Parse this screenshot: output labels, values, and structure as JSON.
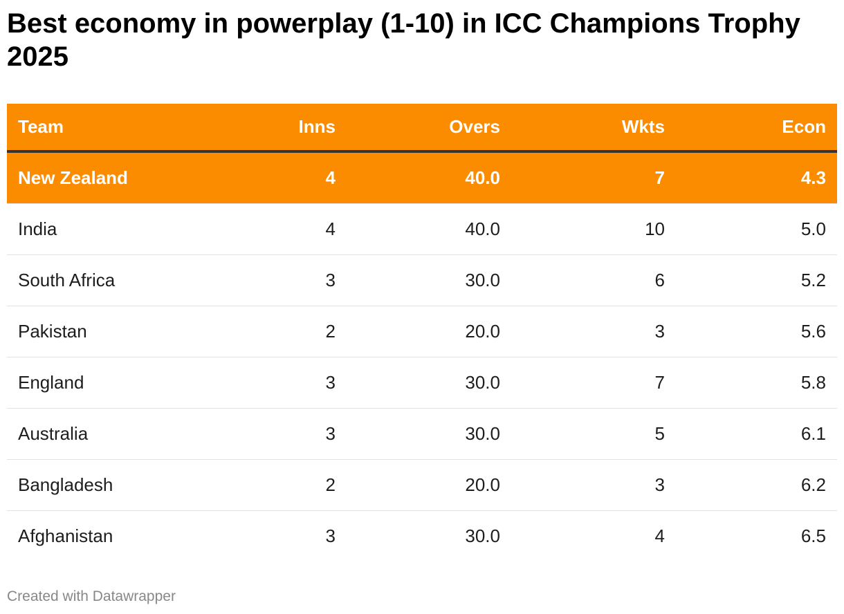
{
  "chart_data": {
    "type": "table",
    "title": "Best economy in powerplay (1-10) in ICC Champions Trophy 2025",
    "columns": [
      "Team",
      "Inns",
      "Overs",
      "Wkts",
      "Econ"
    ],
    "rows": [
      {
        "team": "New Zealand",
        "inns": "4",
        "overs": "40.0",
        "wkts": "7",
        "econ": "4.3",
        "highlight": true
      },
      {
        "team": "India",
        "inns": "4",
        "overs": "40.0",
        "wkts": "10",
        "econ": "5.0",
        "highlight": false
      },
      {
        "team": "South Africa",
        "inns": "3",
        "overs": "30.0",
        "wkts": "6",
        "econ": "5.2",
        "highlight": false
      },
      {
        "team": "Pakistan",
        "inns": "2",
        "overs": "20.0",
        "wkts": "3",
        "econ": "5.6",
        "highlight": false
      },
      {
        "team": "England",
        "inns": "3",
        "overs": "30.0",
        "wkts": "7",
        "econ": "5.8",
        "highlight": false
      },
      {
        "team": "Australia",
        "inns": "3",
        "overs": "30.0",
        "wkts": "5",
        "econ": "6.1",
        "highlight": false
      },
      {
        "team": "Bangladesh",
        "inns": "2",
        "overs": "20.0",
        "wkts": "3",
        "econ": "6.2",
        "highlight": false
      },
      {
        "team": "Afghanistan",
        "inns": "3",
        "overs": "30.0",
        "wkts": "4",
        "econ": "6.5",
        "highlight": false
      }
    ],
    "footer": "Created with Datawrapper",
    "colors": {
      "accent": "#fb8c00",
      "header_rule": "#333333",
      "row_divider": "#e2e2e2",
      "footer_text": "#888888"
    }
  }
}
